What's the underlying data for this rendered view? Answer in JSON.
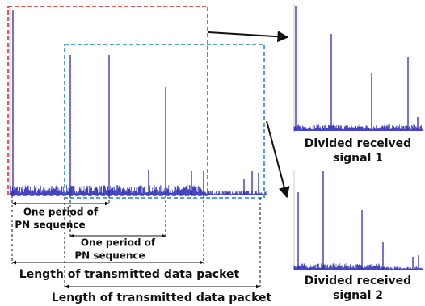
{
  "labels": {
    "pn_period_1": {
      "line1": "One period of",
      "line2": "PN sequence"
    },
    "pn_period_2": {
      "line1": "One period of",
      "line2": "PN sequence"
    },
    "packet_1": "Length of transmitted data packet",
    "packet_2": "Length of transmitted data packet",
    "divided_1": {
      "line1": "Divided received",
      "line2": "signal 1"
    },
    "divided_2": {
      "line1": "Divided received",
      "line2": "signal 2"
    }
  }
}
